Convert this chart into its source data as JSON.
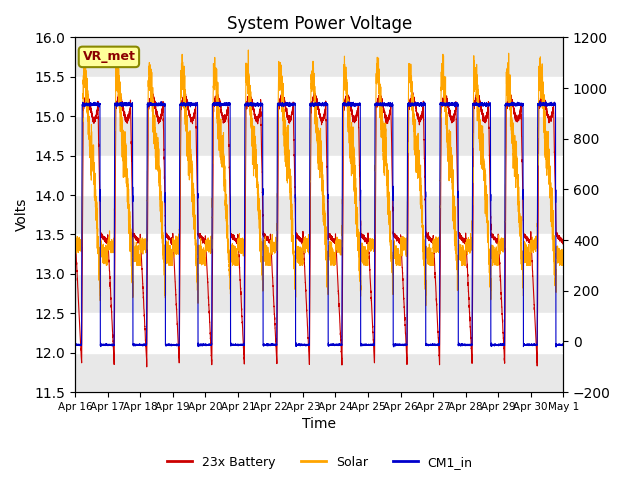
{
  "title": "System Power Voltage",
  "xlabel": "Time",
  "ylabel_left": "Volts",
  "ylim_left": [
    11.5,
    16.0
  ],
  "ylim_right": [
    -200,
    1200
  ],
  "yticks_left": [
    11.5,
    12.0,
    12.5,
    13.0,
    13.5,
    14.0,
    14.5,
    15.0,
    15.5,
    16.0
  ],
  "yticks_right": [
    -200,
    0,
    200,
    400,
    600,
    800,
    1000,
    1200
  ],
  "num_days": 15,
  "date_labels": [
    "Apr 16",
    "Apr 17",
    "Apr 18",
    "Apr 19",
    "Apr 20",
    "Apr 21",
    "Apr 22",
    "Apr 23",
    "Apr 24",
    "Apr 25",
    "Apr 26",
    "Apr 27",
    "Apr 28",
    "Apr 29",
    "Apr 30",
    "May 1"
  ],
  "battery_color": "#CC0000",
  "solar_color": "#FFA500",
  "cm1_color": "#0000CC",
  "background_color": "#E8E8E8",
  "legend_items": [
    "23x Battery",
    "Solar",
    "CM1_in"
  ],
  "vr_met_label": "VR_met",
  "annotation_box_color": "#FFFF99",
  "annotation_box_edge": "#888800"
}
